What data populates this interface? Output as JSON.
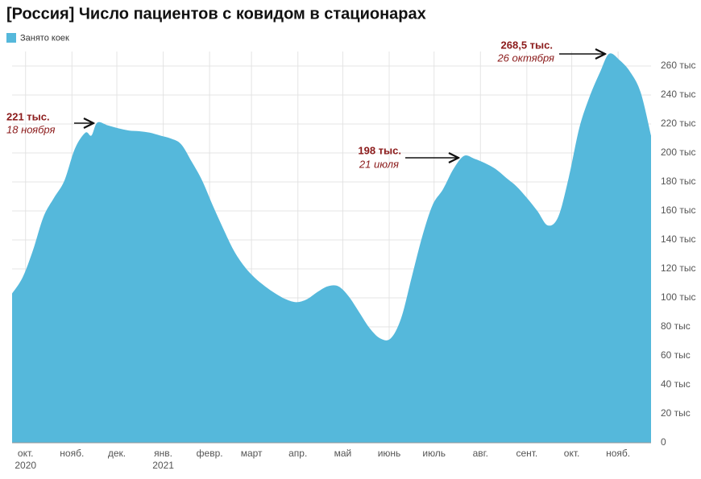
{
  "chart_data": {
    "type": "area",
    "title": "[Россия] Число пациентов с ковидом в стационарах",
    "series": [
      {
        "name": "Занято коек",
        "color": "#55b8db",
        "x": [
          "2020-09-22",
          "2020-09-29",
          "2020-10-06",
          "2020-10-13",
          "2020-10-20",
          "2020-10-27",
          "2020-11-03",
          "2020-11-10",
          "2020-11-14",
          "2020-11-18",
          "2020-11-25",
          "2020-12-02",
          "2020-12-09",
          "2020-12-16",
          "2020-12-23",
          "2020-12-30",
          "2021-01-06",
          "2021-01-13",
          "2021-01-20",
          "2021-01-27",
          "2021-02-03",
          "2021-02-10",
          "2021-02-17",
          "2021-02-24",
          "2021-03-03",
          "2021-03-10",
          "2021-03-17",
          "2021-03-24",
          "2021-03-31",
          "2021-04-07",
          "2021-04-14",
          "2021-04-21",
          "2021-04-28",
          "2021-05-05",
          "2021-05-12",
          "2021-05-19",
          "2021-05-26",
          "2021-06-02",
          "2021-06-09",
          "2021-06-16",
          "2021-06-23",
          "2021-06-30",
          "2021-07-07",
          "2021-07-14",
          "2021-07-21",
          "2021-07-28",
          "2021-08-04",
          "2021-08-11",
          "2021-08-18",
          "2021-08-25",
          "2021-09-01",
          "2021-09-08",
          "2021-09-15",
          "2021-09-22",
          "2021-09-29",
          "2021-10-06",
          "2021-10-13",
          "2021-10-20",
          "2021-10-26",
          "2021-11-02",
          "2021-11-09",
          "2021-11-16",
          "2021-11-23"
        ],
        "values": [
          103,
          114,
          133,
          156,
          169,
          181,
          203,
          214,
          212,
          221,
          219,
          217,
          215.5,
          215,
          214,
          212,
          210,
          206,
          194,
          181,
          164,
          148,
          133,
          122,
          114,
          108,
          103,
          99,
          97,
          99,
          104,
          108,
          108,
          101,
          90,
          79,
          72,
          72,
          86,
          114,
          142,
          164,
          175,
          189,
          198,
          196,
          193,
          189,
          183,
          177,
          169,
          160,
          150,
          156,
          183,
          217,
          239,
          256,
          268.5,
          264,
          256,
          242,
          212
        ]
      }
    ],
    "xlim": [
      "2020-09-22",
      "2021-11-23"
    ],
    "xticks": [
      {
        "value": "2020-10-01",
        "label": "окт. 2020"
      },
      {
        "value": "2020-11-01",
        "label": "нояб."
      },
      {
        "value": "2020-12-01",
        "label": "дек."
      },
      {
        "value": "2021-01-01",
        "label": "янв. 2021"
      },
      {
        "value": "2021-02-01",
        "label": "февр."
      },
      {
        "value": "2021-03-01",
        "label": "март"
      },
      {
        "value": "2021-04-01",
        "label": "апр."
      },
      {
        "value": "2021-05-01",
        "label": "май"
      },
      {
        "value": "2021-06-01",
        "label": "июнь"
      },
      {
        "value": "2021-07-01",
        "label": "июль"
      },
      {
        "value": "2021-08-01",
        "label": "авг."
      },
      {
        "value": "2021-09-01",
        "label": "сент."
      },
      {
        "value": "2021-10-01",
        "label": "окт."
      },
      {
        "value": "2021-11-01",
        "label": "нояб."
      }
    ],
    "ylim": [
      0,
      270
    ],
    "yticks": [
      0,
      {
        "value": 20,
        "label": "20 тыс"
      },
      {
        "value": 40,
        "label": "40 тыс"
      },
      {
        "value": 60,
        "label": "60 тыс"
      },
      {
        "value": 80,
        "label": "80 тыс"
      },
      {
        "value": 100,
        "label": "100 тыс"
      },
      {
        "value": 120,
        "label": "120 тыс"
      },
      {
        "value": 140,
        "label": "140 тыс"
      },
      {
        "value": 160,
        "label": "160 тыс"
      },
      {
        "value": 180,
        "label": "180 тыс"
      },
      {
        "value": 200,
        "label": "200 тыс"
      },
      {
        "value": 220,
        "label": "220 тыс"
      },
      {
        "value": 240,
        "label": "240 тыс"
      },
      {
        "value": 260,
        "label": "260 тыс"
      }
    ],
    "grid": true,
    "annotations": [
      {
        "label": "221 тыс.",
        "date": "18 ноября"
      },
      {
        "label": "198 тыс.",
        "date": "21 июля"
      },
      {
        "label": "268,5 тыс.",
        "date": "26 октября"
      }
    ]
  }
}
